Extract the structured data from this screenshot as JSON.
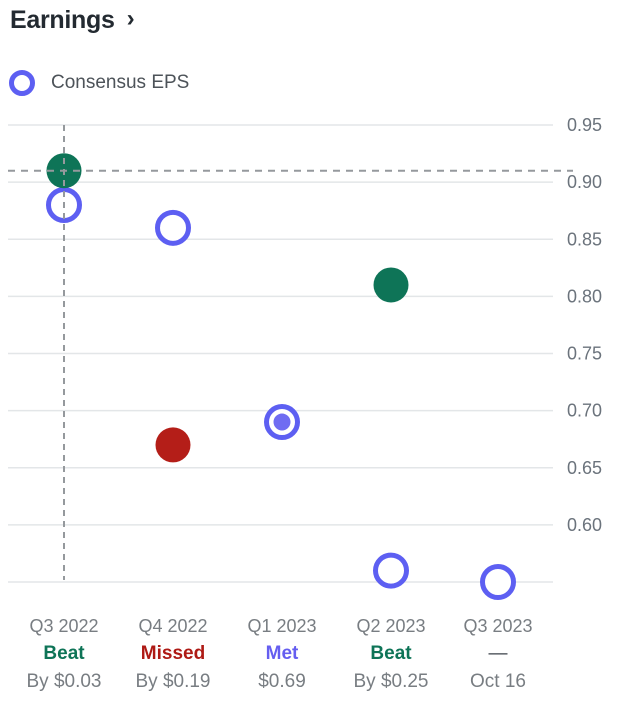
{
  "header": {
    "title": "Earnings",
    "chevron": "›"
  },
  "legend": {
    "label": "Consensus EPS"
  },
  "chart_data": {
    "type": "scatter",
    "title": "Earnings",
    "legend": [
      "Consensus EPS"
    ],
    "y_axis": {
      "min": 0.55,
      "max": 0.95,
      "grid_step": 0.05,
      "tick_labels": [
        "0.95",
        "0.90",
        "0.85",
        "0.80",
        "0.75",
        "0.70",
        "0.65",
        "0.60"
      ],
      "side": "right",
      "grid": true
    },
    "reference_value": 0.91,
    "highlight_quarter_index": 0,
    "quarters": [
      {
        "label": "Q3 2022",
        "consensus": 0.88,
        "actual": 0.91,
        "type": "beat",
        "status": "Beat",
        "detail": "By $0.03"
      },
      {
        "label": "Q4 2022",
        "consensus": 0.86,
        "actual": 0.67,
        "type": "missed",
        "status": "Missed",
        "detail": "By $0.19"
      },
      {
        "label": "Q1 2023",
        "consensus": 0.69,
        "actual": 0.69,
        "type": "met",
        "status": "Met",
        "detail": "$0.69"
      },
      {
        "label": "Q2 2023",
        "consensus": 0.56,
        "actual": 0.81,
        "type": "beat",
        "status": "Beat",
        "detail": "By $0.25"
      },
      {
        "label": "Q3 2023",
        "consensus": 0.55,
        "actual": null,
        "type": "upcoming",
        "status": "—",
        "detail": "Oct 16"
      }
    ],
    "colors": {
      "beat": "#0e7457",
      "missed": "#b41e18",
      "consensus_ring": "#5d5ff2",
      "met_inner": "#6f6cf2",
      "gridline": "#e3e6e8",
      "dashed_line": "#95999d",
      "tick_label": "#6b737c"
    }
  }
}
